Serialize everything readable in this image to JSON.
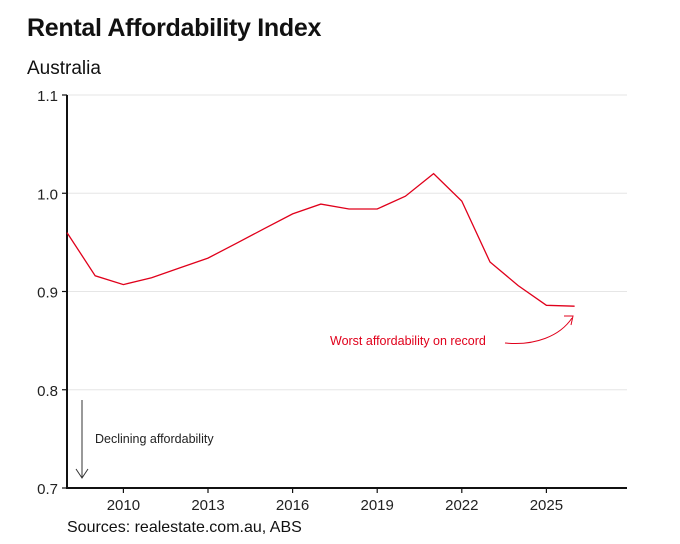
{
  "header": {
    "title": "Rental Affordability Index",
    "subtitle": "Australia"
  },
  "footer": {
    "source": "Sources: realestate.com.au, ABS"
  },
  "colors": {
    "series": "#e0001b",
    "axis": "#111111",
    "grid": "#e6e6e6",
    "annotation_dark": "#333333"
  },
  "chart_data": {
    "type": "line",
    "title": "Rental Affordability Index",
    "subtitle": "Australia",
    "xlabel": "",
    "ylabel": "",
    "xlim": [
      2008,
      2028
    ],
    "ylim": [
      0.7,
      1.1
    ],
    "grid": true,
    "x_ticks": [
      2010,
      2013,
      2016,
      2019,
      2022,
      2025
    ],
    "x_tick_labels": [
      "2010",
      "2013",
      "2016",
      "2019",
      "2022",
      "2025"
    ],
    "y_ticks": [
      0.7,
      0.8,
      0.9,
      1.0,
      1.1
    ],
    "y_tick_labels": [
      "0.7",
      "0.8",
      "0.9",
      "1.0",
      "1.1"
    ],
    "series": [
      {
        "name": "Rental Affordability Index",
        "x": [
          2008,
          2009,
          2010,
          2011,
          2012,
          2013,
          2014,
          2015,
          2016,
          2017,
          2018,
          2019,
          2020,
          2021,
          2022,
          2023,
          2024,
          2025,
          2026
        ],
        "values": [
          0.96,
          0.916,
          0.907,
          0.914,
          0.924,
          0.934,
          0.949,
          0.964,
          0.979,
          0.989,
          0.984,
          0.984,
          0.997,
          1.02,
          0.992,
          0.93,
          0.906,
          0.886,
          0.885
        ]
      }
    ],
    "annotations": [
      {
        "id": "worst",
        "text": "Worst affordability on record",
        "points_to": {
          "x": 2026,
          "y": 0.885
        }
      },
      {
        "id": "declining",
        "text": "Declining affordability",
        "direction": "down"
      }
    ],
    "source": "Sources: realestate.com.au, ABS"
  }
}
